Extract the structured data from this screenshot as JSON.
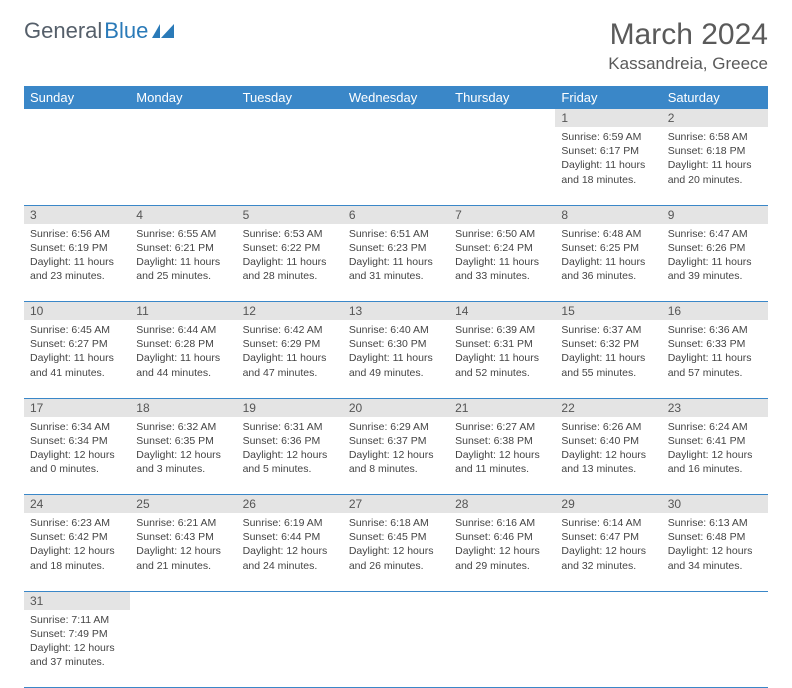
{
  "logo": {
    "text1": "General",
    "text2": "Blue"
  },
  "title": "March 2024",
  "location": "Kassandreia, Greece",
  "colors": {
    "header_bg": "#3a87c8",
    "header_text": "#ffffff",
    "daynum_bg": "#e4e4e4",
    "border": "#3a87c8",
    "logo_gray": "#555f6a",
    "logo_blue": "#2a7ab8"
  },
  "weekdays": [
    "Sunday",
    "Monday",
    "Tuesday",
    "Wednesday",
    "Thursday",
    "Friday",
    "Saturday"
  ],
  "weeks": [
    [
      null,
      null,
      null,
      null,
      null,
      {
        "n": "1",
        "sr": "Sunrise: 6:59 AM",
        "ss": "Sunset: 6:17 PM",
        "dl": "Daylight: 11 hours and 18 minutes."
      },
      {
        "n": "2",
        "sr": "Sunrise: 6:58 AM",
        "ss": "Sunset: 6:18 PM",
        "dl": "Daylight: 11 hours and 20 minutes."
      }
    ],
    [
      {
        "n": "3",
        "sr": "Sunrise: 6:56 AM",
        "ss": "Sunset: 6:19 PM",
        "dl": "Daylight: 11 hours and 23 minutes."
      },
      {
        "n": "4",
        "sr": "Sunrise: 6:55 AM",
        "ss": "Sunset: 6:21 PM",
        "dl": "Daylight: 11 hours and 25 minutes."
      },
      {
        "n": "5",
        "sr": "Sunrise: 6:53 AM",
        "ss": "Sunset: 6:22 PM",
        "dl": "Daylight: 11 hours and 28 minutes."
      },
      {
        "n": "6",
        "sr": "Sunrise: 6:51 AM",
        "ss": "Sunset: 6:23 PM",
        "dl": "Daylight: 11 hours and 31 minutes."
      },
      {
        "n": "7",
        "sr": "Sunrise: 6:50 AM",
        "ss": "Sunset: 6:24 PM",
        "dl": "Daylight: 11 hours and 33 minutes."
      },
      {
        "n": "8",
        "sr": "Sunrise: 6:48 AM",
        "ss": "Sunset: 6:25 PM",
        "dl": "Daylight: 11 hours and 36 minutes."
      },
      {
        "n": "9",
        "sr": "Sunrise: 6:47 AM",
        "ss": "Sunset: 6:26 PM",
        "dl": "Daylight: 11 hours and 39 minutes."
      }
    ],
    [
      {
        "n": "10",
        "sr": "Sunrise: 6:45 AM",
        "ss": "Sunset: 6:27 PM",
        "dl": "Daylight: 11 hours and 41 minutes."
      },
      {
        "n": "11",
        "sr": "Sunrise: 6:44 AM",
        "ss": "Sunset: 6:28 PM",
        "dl": "Daylight: 11 hours and 44 minutes."
      },
      {
        "n": "12",
        "sr": "Sunrise: 6:42 AM",
        "ss": "Sunset: 6:29 PM",
        "dl": "Daylight: 11 hours and 47 minutes."
      },
      {
        "n": "13",
        "sr": "Sunrise: 6:40 AM",
        "ss": "Sunset: 6:30 PM",
        "dl": "Daylight: 11 hours and 49 minutes."
      },
      {
        "n": "14",
        "sr": "Sunrise: 6:39 AM",
        "ss": "Sunset: 6:31 PM",
        "dl": "Daylight: 11 hours and 52 minutes."
      },
      {
        "n": "15",
        "sr": "Sunrise: 6:37 AM",
        "ss": "Sunset: 6:32 PM",
        "dl": "Daylight: 11 hours and 55 minutes."
      },
      {
        "n": "16",
        "sr": "Sunrise: 6:36 AM",
        "ss": "Sunset: 6:33 PM",
        "dl": "Daylight: 11 hours and 57 minutes."
      }
    ],
    [
      {
        "n": "17",
        "sr": "Sunrise: 6:34 AM",
        "ss": "Sunset: 6:34 PM",
        "dl": "Daylight: 12 hours and 0 minutes."
      },
      {
        "n": "18",
        "sr": "Sunrise: 6:32 AM",
        "ss": "Sunset: 6:35 PM",
        "dl": "Daylight: 12 hours and 3 minutes."
      },
      {
        "n": "19",
        "sr": "Sunrise: 6:31 AM",
        "ss": "Sunset: 6:36 PM",
        "dl": "Daylight: 12 hours and 5 minutes."
      },
      {
        "n": "20",
        "sr": "Sunrise: 6:29 AM",
        "ss": "Sunset: 6:37 PM",
        "dl": "Daylight: 12 hours and 8 minutes."
      },
      {
        "n": "21",
        "sr": "Sunrise: 6:27 AM",
        "ss": "Sunset: 6:38 PM",
        "dl": "Daylight: 12 hours and 11 minutes."
      },
      {
        "n": "22",
        "sr": "Sunrise: 6:26 AM",
        "ss": "Sunset: 6:40 PM",
        "dl": "Daylight: 12 hours and 13 minutes."
      },
      {
        "n": "23",
        "sr": "Sunrise: 6:24 AM",
        "ss": "Sunset: 6:41 PM",
        "dl": "Daylight: 12 hours and 16 minutes."
      }
    ],
    [
      {
        "n": "24",
        "sr": "Sunrise: 6:23 AM",
        "ss": "Sunset: 6:42 PM",
        "dl": "Daylight: 12 hours and 18 minutes."
      },
      {
        "n": "25",
        "sr": "Sunrise: 6:21 AM",
        "ss": "Sunset: 6:43 PM",
        "dl": "Daylight: 12 hours and 21 minutes."
      },
      {
        "n": "26",
        "sr": "Sunrise: 6:19 AM",
        "ss": "Sunset: 6:44 PM",
        "dl": "Daylight: 12 hours and 24 minutes."
      },
      {
        "n": "27",
        "sr": "Sunrise: 6:18 AM",
        "ss": "Sunset: 6:45 PM",
        "dl": "Daylight: 12 hours and 26 minutes."
      },
      {
        "n": "28",
        "sr": "Sunrise: 6:16 AM",
        "ss": "Sunset: 6:46 PM",
        "dl": "Daylight: 12 hours and 29 minutes."
      },
      {
        "n": "29",
        "sr": "Sunrise: 6:14 AM",
        "ss": "Sunset: 6:47 PM",
        "dl": "Daylight: 12 hours and 32 minutes."
      },
      {
        "n": "30",
        "sr": "Sunrise: 6:13 AM",
        "ss": "Sunset: 6:48 PM",
        "dl": "Daylight: 12 hours and 34 minutes."
      }
    ],
    [
      {
        "n": "31",
        "sr": "Sunrise: 7:11 AM",
        "ss": "Sunset: 7:49 PM",
        "dl": "Daylight: 12 hours and 37 minutes."
      },
      null,
      null,
      null,
      null,
      null,
      null
    ]
  ]
}
